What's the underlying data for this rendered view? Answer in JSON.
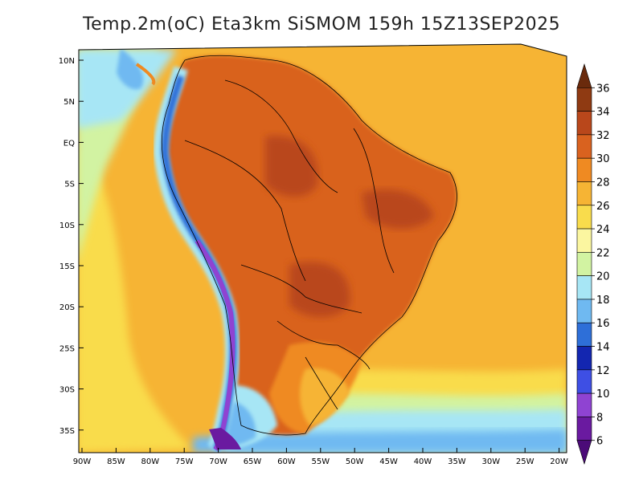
{
  "title": "Temp.2m(oC) Eta3km SiSMOM 159h 15Z13SEP2025",
  "map": {
    "lat_labels": [
      "10N",
      "5N",
      "EQ",
      "5S",
      "10S",
      "15S",
      "20S",
      "25S",
      "30S",
      "35S"
    ],
    "lon_labels": [
      "90W",
      "85W",
      "80W",
      "75W",
      "70W",
      "65W",
      "60W",
      "55W",
      "50W",
      "45W",
      "40W",
      "35W",
      "30W",
      "25W",
      "20W"
    ],
    "variable": "Temp.2m",
    "units": "oC"
  },
  "colorbar": {
    "labels": [
      "36",
      "34",
      "32",
      "30",
      "28",
      "26",
      "24",
      "22",
      "20",
      "18",
      "16",
      "14",
      "12",
      "10",
      "8",
      "6"
    ],
    "colors": [
      "#6a2a0c",
      "#8f3a12",
      "#b9471b",
      "#d9621f",
      "#ef8a22",
      "#f6b434",
      "#f9dc4c",
      "#fbf6a0",
      "#d2f3a2",
      "#a7e6f5",
      "#6fb9f1",
      "#2e6fd8",
      "#1326b0",
      "#3e4fe4",
      "#8f43d2",
      "#6a1aa0",
      "#4b0b78"
    ]
  }
}
